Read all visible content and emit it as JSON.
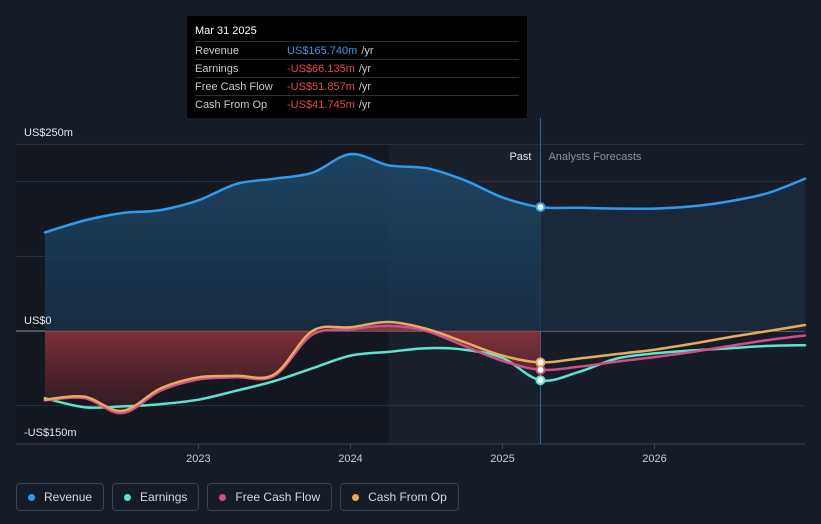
{
  "tooltip": {
    "date": "Mar 31 2025",
    "rows": [
      {
        "label": "Revenue",
        "value": "US$165.740m",
        "unit": "/yr",
        "color": "#3a9be6"
      },
      {
        "label": "Earnings",
        "value": "-US$66.135m",
        "unit": "/yr",
        "color": "#e8484e"
      },
      {
        "label": "Free Cash Flow",
        "value": "-US$51.857m",
        "unit": "/yr",
        "color": "#e8484e"
      },
      {
        "label": "Cash From Op",
        "value": "-US$41.745m",
        "unit": "/yr",
        "color": "#e8484e"
      }
    ]
  },
  "legend": [
    {
      "label": "Revenue",
      "color": "#2f9bef"
    },
    {
      "label": "Earnings",
      "color": "#5ee3d1"
    },
    {
      "label": "Free Cash Flow",
      "color": "#cf4f86"
    },
    {
      "label": "Cash From Op",
      "color": "#e8ab5c"
    }
  ],
  "chart_data": {
    "type": "line",
    "x_unit": "year",
    "y_unit": "US$m",
    "ylim": [
      -150,
      250
    ],
    "y_tick_labels": [
      {
        "value": 250,
        "label": "US$250m"
      },
      {
        "value": 0,
        "label": "US$0"
      },
      {
        "value": -150,
        "label": "-US$150m"
      }
    ],
    "gridlines": [
      250,
      200,
      100,
      0,
      -100
    ],
    "x_ticks": [
      {
        "value": 2023,
        "label": "2023"
      },
      {
        "value": 2024,
        "label": "2024"
      },
      {
        "value": 2025,
        "label": "2025"
      },
      {
        "value": 2026,
        "label": "2026"
      }
    ],
    "xlim": [
      2021.8,
      2026.99
    ],
    "divider_x": 2025.25,
    "highlight_from": 2024.25,
    "past_label": "Past",
    "forecast_label": "Analysts Forecasts",
    "series": [
      {
        "name": "Revenue",
        "color": "#2f9bef",
        "fill": true,
        "x": [
          2021.99,
          2022.25,
          2022.5,
          2022.75,
          2023.0,
          2023.25,
          2023.5,
          2023.75,
          2024.0,
          2024.25,
          2024.5,
          2024.75,
          2025.0,
          2025.25,
          2025.5,
          2025.75,
          2026.0,
          2026.25,
          2026.5,
          2026.75,
          2026.99
        ],
        "y": [
          132,
          148,
          158,
          162,
          175,
          197,
          204,
          212,
          237,
          222,
          218,
          202,
          179,
          166,
          165,
          164,
          164,
          167,
          174,
          185,
          204
        ]
      },
      {
        "name": "Earnings",
        "color": "#5ee3d1",
        "x": [
          2021.99,
          2022.25,
          2022.5,
          2022.75,
          2023.0,
          2023.25,
          2023.5,
          2023.75,
          2024.0,
          2024.25,
          2024.5,
          2024.75,
          2025.0,
          2025.25,
          2025.5,
          2025.75,
          2026.0,
          2026.25,
          2026.5,
          2026.75,
          2026.99
        ],
        "y": [
          -90,
          -102,
          -101,
          -98,
          -92,
          -80,
          -67,
          -50,
          -33,
          -28,
          -23,
          -25,
          -36,
          -66,
          -55,
          -37,
          -30,
          -26,
          -23,
          -20,
          -19
        ]
      },
      {
        "name": "Free Cash Flow",
        "color": "#cf4f86",
        "fill": true,
        "x": [
          2021.99,
          2022.25,
          2022.5,
          2022.75,
          2023.0,
          2023.25,
          2023.5,
          2023.75,
          2024.0,
          2024.25,
          2024.5,
          2024.75,
          2025.0,
          2025.25,
          2025.5,
          2025.75,
          2026.0,
          2026.25,
          2026.5,
          2026.75,
          2026.99
        ],
        "y": [
          -93,
          -90,
          -110,
          -80,
          -65,
          -62,
          -60,
          -5,
          2,
          7,
          0,
          -20,
          -40,
          -52,
          -48,
          -41,
          -35,
          -28,
          -20,
          -12,
          -6
        ]
      },
      {
        "name": "Cash From Op",
        "color": "#e8ab5c",
        "x": [
          2021.99,
          2022.25,
          2022.5,
          2022.75,
          2023.0,
          2023.25,
          2023.5,
          2023.75,
          2024.0,
          2024.25,
          2024.5,
          2024.75,
          2025.0,
          2025.25,
          2025.5,
          2025.75,
          2026.0,
          2026.25,
          2026.5,
          2026.75,
          2026.99
        ],
        "y": [
          -92,
          -88,
          -107,
          -77,
          -62,
          -60,
          -58,
          0,
          5,
          12,
          3,
          -15,
          -33,
          -42,
          -37,
          -31,
          -25,
          -17,
          -8,
          0,
          8
        ]
      }
    ],
    "markers": [
      {
        "series": "Revenue",
        "x": 2025.25,
        "y": 166
      },
      {
        "series": "Earnings",
        "x": 2025.25,
        "y": -66
      },
      {
        "series": "Free Cash Flow",
        "x": 2025.25,
        "y": -52
      },
      {
        "series": "Cash From Op",
        "x": 2025.25,
        "y": -42
      }
    ]
  }
}
